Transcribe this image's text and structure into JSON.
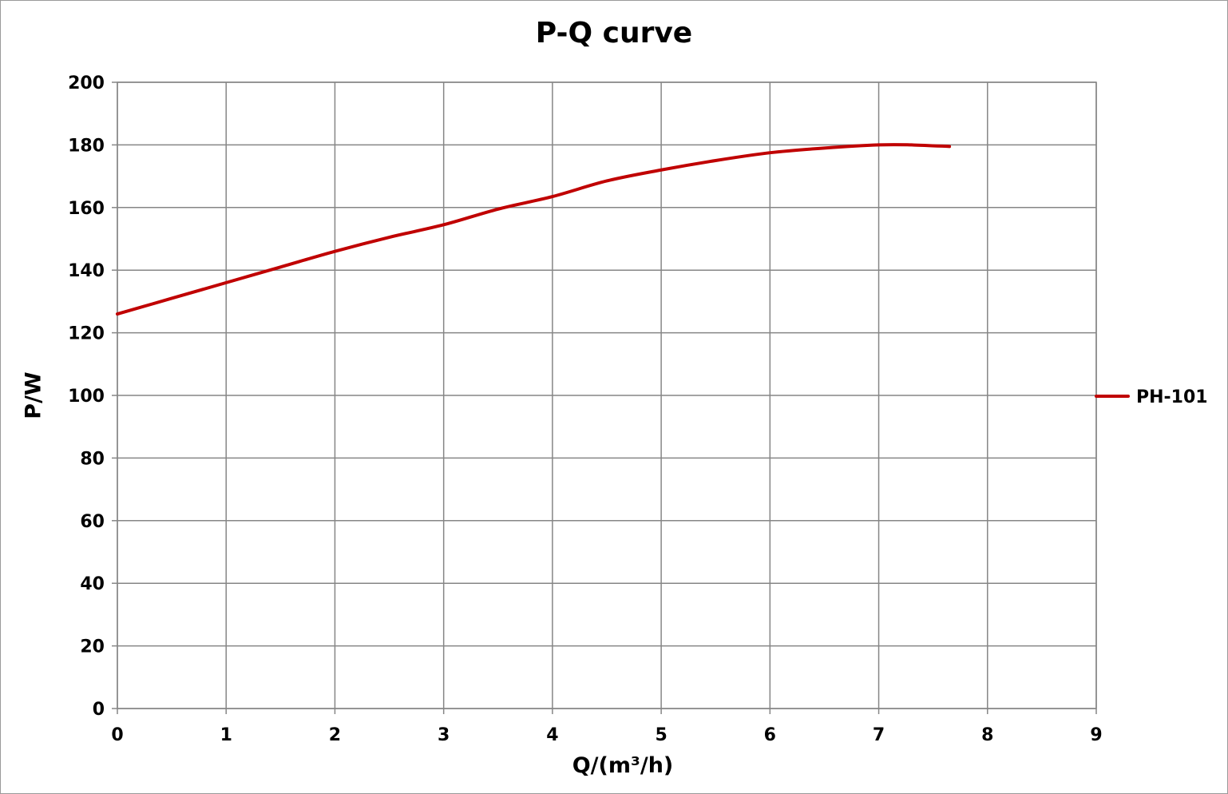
{
  "chart_data": {
    "type": "line",
    "title": "P-Q  curve",
    "xlabel": "Q/(m³/h)",
    "ylabel": "P/W",
    "xlim": [
      0,
      9
    ],
    "ylim": [
      0,
      200
    ],
    "x_ticks": [
      "0",
      "1",
      "2",
      "3",
      "4",
      "5",
      "6",
      "7",
      "8",
      "9"
    ],
    "y_ticks": [
      "0",
      "20",
      "40",
      "60",
      "80",
      "100",
      "120",
      "140",
      "160",
      "180",
      "200"
    ],
    "grid": true,
    "legend_position": "right",
    "series": [
      {
        "name": "PH-101",
        "color": "#C00000",
        "points": [
          [
            0,
            126
          ],
          [
            0.5,
            131
          ],
          [
            1,
            136
          ],
          [
            1.5,
            141
          ],
          [
            2,
            146
          ],
          [
            2.5,
            150.5
          ],
          [
            3,
            154.5
          ],
          [
            3.5,
            159.5
          ],
          [
            4,
            163.5
          ],
          [
            4.5,
            168.5
          ],
          [
            5,
            172
          ],
          [
            5.5,
            175
          ],
          [
            6,
            177.5
          ],
          [
            6.5,
            179
          ],
          [
            7,
            180
          ],
          [
            7.3,
            180
          ],
          [
            7.65,
            179.5
          ]
        ]
      }
    ]
  }
}
